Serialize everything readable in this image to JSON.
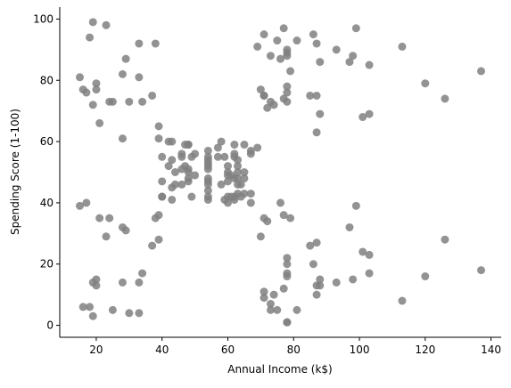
{
  "chart_data": {
    "type": "scatter",
    "x_label": "Annual Income (k$)",
    "y_label": "Spending Score (1-100)",
    "color": "#808080",
    "x": [
      15,
      15,
      16,
      16,
      17,
      17,
      18,
      18,
      19,
      19,
      19,
      19,
      20,
      20,
      20,
      20,
      21,
      21,
      23,
      23,
      24,
      24,
      25,
      25,
      28,
      28,
      28,
      28,
      29,
      29,
      30,
      30,
      33,
      33,
      33,
      33,
      34,
      34,
      37,
      37,
      38,
      38,
      39,
      39,
      39,
      39,
      40,
      40,
      40,
      40,
      42,
      42,
      43,
      43,
      43,
      43,
      44,
      44,
      46,
      46,
      46,
      46,
      47,
      47,
      48,
      48,
      48,
      48,
      48,
      48,
      49,
      49,
      50,
      50,
      54,
      54,
      54,
      54,
      54,
      54,
      54,
      54,
      54,
      54,
      54,
      54,
      57,
      57,
      58,
      58,
      59,
      59,
      60,
      60,
      60,
      60,
      60,
      60,
      61,
      61,
      62,
      62,
      62,
      62,
      62,
      62,
      63,
      63,
      63,
      63,
      63,
      63,
      64,
      64,
      65,
      65,
      65,
      65,
      67,
      67,
      67,
      67,
      69,
      69,
      70,
      70,
      71,
      71,
      71,
      71,
      71,
      71,
      72,
      72,
      73,
      73,
      73,
      73,
      74,
      74,
      75,
      75,
      76,
      76,
      77,
      77,
      77,
      77,
      78,
      78,
      78,
      78,
      78,
      78,
      78,
      78,
      78,
      78,
      78,
      78,
      79,
      79,
      81,
      81,
      85,
      85,
      86,
      86,
      87,
      87,
      87,
      87,
      87,
      87,
      88,
      88,
      88,
      88,
      93,
      93,
      97,
      97,
      98,
      98,
      99,
      99,
      101,
      101,
      103,
      103,
      103,
      103,
      113,
      113,
      120,
      120,
      126,
      126,
      137,
      137
    ],
    "y": [
      39,
      81,
      6,
      77,
      40,
      76,
      6,
      94,
      3,
      72,
      14,
      99,
      15,
      77,
      13,
      79,
      35,
      66,
      29,
      98,
      35,
      73,
      5,
      73,
      14,
      82,
      32,
      61,
      31,
      87,
      4,
      73,
      4,
      92,
      14,
      81,
      17,
      73,
      26,
      75,
      35,
      92,
      36,
      61,
      28,
      65,
      55,
      47,
      42,
      42,
      52,
      60,
      54,
      60,
      45,
      41,
      50,
      46,
      51,
      46,
      56,
      55,
      52,
      59,
      51,
      59,
      50,
      48,
      59,
      47,
      55,
      42,
      49,
      56,
      47,
      54,
      53,
      48,
      52,
      42,
      51,
      55,
      41,
      44,
      57,
      46,
      58,
      55,
      60,
      46,
      55,
      41,
      49,
      40,
      42,
      52,
      47,
      50,
      42,
      49,
      41,
      48,
      59,
      55,
      56,
      42,
      50,
      46,
      43,
      48,
      52,
      54,
      42,
      46,
      48,
      50,
      43,
      59,
      43,
      57,
      56,
      40,
      58,
      91,
      29,
      77,
      35,
      95,
      11,
      75,
      9,
      75,
      34,
      71,
      5,
      88,
      7,
      73,
      10,
      72,
      5,
      93,
      40,
      87,
      12,
      97,
      36,
      74,
      22,
      90,
      17,
      88,
      20,
      76,
      16,
      89,
      1,
      78,
      1,
      73,
      35,
      83,
      5,
      93,
      26,
      75,
      20,
      95,
      27,
      63,
      13,
      75,
      10,
      92,
      13,
      86,
      15,
      69,
      14,
      90,
      32,
      86,
      15,
      88,
      39,
      97,
      24,
      68,
      17,
      85,
      23,
      69,
      8,
      91,
      16,
      79,
      28,
      74,
      18,
      83
    ],
    "xlim": [
      8.9,
      143.1
    ],
    "ylim": [
      -3.9,
      103.9
    ],
    "xticks": [
      20,
      40,
      60,
      80,
      100,
      120,
      140
    ],
    "yticks": [
      0,
      20,
      40,
      60,
      80,
      100
    ]
  }
}
